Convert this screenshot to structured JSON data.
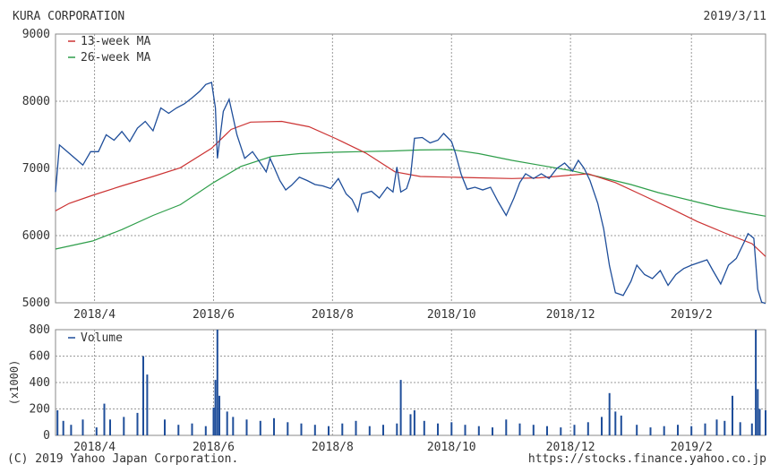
{
  "header": {
    "company": "KURA CORPORATION",
    "date": "2019/3/11"
  },
  "footer": {
    "copyright": "(C) 2019 Yahoo Japan Corporation.",
    "url": "https://stocks.finance.yahoo.co.jp"
  },
  "colors": {
    "price": "#1f4e9a",
    "ma13": "#cc3333",
    "ma26": "#2e9e4a",
    "volume": "#1f4e9a",
    "grid": "#999999",
    "frame": "#888888"
  },
  "chart_data": [
    {
      "type": "line",
      "title": "",
      "xlabel": "",
      "ylabel": "",
      "ylim": [
        5000,
        9000
      ],
      "yticks": [
        5000,
        6000,
        7000,
        8000,
        9000
      ],
      "xticks": [
        "2018/4",
        "2018/6",
        "2018/8",
        "2018/10",
        "2018/12",
        "2019/2"
      ],
      "x_range": [
        "2018-03-12",
        "2019-03-11"
      ],
      "grid": true,
      "legend": "top-left",
      "series": [
        {
          "name": "price",
          "points": [
            [
              "2018-03-12",
              6650
            ],
            [
              "2018-03-14",
              7350
            ],
            [
              "2018-03-18",
              7250
            ],
            [
              "2018-03-22",
              7150
            ],
            [
              "2018-03-26",
              7050
            ],
            [
              "2018-03-30",
              7250
            ],
            [
              "2018-04-03",
              7250
            ],
            [
              "2018-04-07",
              7500
            ],
            [
              "2018-04-11",
              7420
            ],
            [
              "2018-04-15",
              7550
            ],
            [
              "2018-04-19",
              7400
            ],
            [
              "2018-04-23",
              7600
            ],
            [
              "2018-04-27",
              7700
            ],
            [
              "2018-05-01",
              7560
            ],
            [
              "2018-05-05",
              7900
            ],
            [
              "2018-05-09",
              7820
            ],
            [
              "2018-05-13",
              7900
            ],
            [
              "2018-05-17",
              7960
            ],
            [
              "2018-05-21",
              8050
            ],
            [
              "2018-05-25",
              8150
            ],
            [
              "2018-05-28",
              8250
            ],
            [
              "2018-05-31",
              8280
            ],
            [
              "2018-06-02",
              7900
            ],
            [
              "2018-06-03",
              7150
            ],
            [
              "2018-06-06",
              7850
            ],
            [
              "2018-06-09",
              8030
            ],
            [
              "2018-06-13",
              7500
            ],
            [
              "2018-06-17",
              7150
            ],
            [
              "2018-06-21",
              7250
            ],
            [
              "2018-06-25",
              7080
            ],
            [
              "2018-06-28",
              6950
            ],
            [
              "2018-06-30",
              7150
            ],
            [
              "2018-07-02",
              7020
            ],
            [
              "2018-07-05",
              6820
            ],
            [
              "2018-07-08",
              6680
            ],
            [
              "2018-07-11",
              6750
            ],
            [
              "2018-07-15",
              6870
            ],
            [
              "2018-07-19",
              6820
            ],
            [
              "2018-07-23",
              6760
            ],
            [
              "2018-07-27",
              6740
            ],
            [
              "2018-07-31",
              6700
            ],
            [
              "2018-08-04",
              6850
            ],
            [
              "2018-08-08",
              6620
            ],
            [
              "2018-08-11",
              6540
            ],
            [
              "2018-08-14",
              6360
            ],
            [
              "2018-08-16",
              6620
            ],
            [
              "2018-08-21",
              6660
            ],
            [
              "2018-08-25",
              6560
            ],
            [
              "2018-08-29",
              6720
            ],
            [
              "2018-09-01",
              6650
            ],
            [
              "2018-09-03",
              7020
            ],
            [
              "2018-09-05",
              6650
            ],
            [
              "2018-09-08",
              6700
            ],
            [
              "2018-09-10",
              6880
            ],
            [
              "2018-09-12",
              7450
            ],
            [
              "2018-09-16",
              7460
            ],
            [
              "2018-09-20",
              7380
            ],
            [
              "2018-09-24",
              7420
            ],
            [
              "2018-09-27",
              7520
            ],
            [
              "2018-10-01",
              7400
            ],
            [
              "2018-10-03",
              7230
            ],
            [
              "2018-10-06",
              6910
            ],
            [
              "2018-10-09",
              6690
            ],
            [
              "2018-10-13",
              6720
            ],
            [
              "2018-10-17",
              6680
            ],
            [
              "2018-10-21",
              6720
            ],
            [
              "2018-10-25",
              6500
            ],
            [
              "2018-10-29",
              6300
            ],
            [
              "2018-11-02",
              6560
            ],
            [
              "2018-11-05",
              6790
            ],
            [
              "2018-11-08",
              6920
            ],
            [
              "2018-11-12",
              6850
            ],
            [
              "2018-11-16",
              6920
            ],
            [
              "2018-11-20",
              6850
            ],
            [
              "2018-11-24",
              7000
            ],
            [
              "2018-11-28",
              7080
            ],
            [
              "2018-12-02",
              6960
            ],
            [
              "2018-12-05",
              7120
            ],
            [
              "2018-12-08",
              7000
            ],
            [
              "2018-12-11",
              6820
            ],
            [
              "2018-12-15",
              6480
            ],
            [
              "2018-12-18",
              6100
            ],
            [
              "2018-12-21",
              5550
            ],
            [
              "2018-12-24",
              5150
            ],
            [
              "2018-12-28",
              5110
            ],
            [
              "2019-01-01",
              5320
            ],
            [
              "2019-01-04",
              5560
            ],
            [
              "2019-01-08",
              5420
            ],
            [
              "2019-01-12",
              5360
            ],
            [
              "2019-01-16",
              5480
            ],
            [
              "2019-01-20",
              5260
            ],
            [
              "2019-01-24",
              5420
            ],
            [
              "2019-01-28",
              5510
            ],
            [
              "2019-02-01",
              5560
            ],
            [
              "2019-02-05",
              5600
            ],
            [
              "2019-02-09",
              5640
            ],
            [
              "2019-02-12",
              5480
            ],
            [
              "2019-02-16",
              5280
            ],
            [
              "2019-02-20",
              5560
            ],
            [
              "2019-02-24",
              5660
            ],
            [
              "2019-02-28",
              5900
            ],
            [
              "2019-03-02",
              6030
            ],
            [
              "2019-03-05",
              5960
            ],
            [
              "2019-03-07",
              5200
            ],
            [
              "2019-03-09",
              5010
            ],
            [
              "2019-03-11",
              4990
            ]
          ]
        },
        {
          "name": "13-week MA",
          "points": [
            [
              "2018-03-12",
              6370
            ],
            [
              "2018-03-19",
              6480
            ],
            [
              "2018-03-31",
              6600
            ],
            [
              "2018-04-15",
              6740
            ],
            [
              "2018-05-01",
              6880
            ],
            [
              "2018-05-15",
              7010
            ],
            [
              "2018-05-31",
              7300
            ],
            [
              "2018-06-10",
              7580
            ],
            [
              "2018-06-20",
              7690
            ],
            [
              "2018-07-06",
              7700
            ],
            [
              "2018-07-20",
              7620
            ],
            [
              "2018-08-03",
              7440
            ],
            [
              "2018-08-18",
              7230
            ],
            [
              "2018-09-02",
              6950
            ],
            [
              "2018-09-15",
              6880
            ],
            [
              "2018-10-01",
              6870
            ],
            [
              "2018-10-15",
              6860
            ],
            [
              "2018-11-01",
              6850
            ],
            [
              "2018-11-15",
              6860
            ],
            [
              "2018-12-01",
              6900
            ],
            [
              "2018-12-10",
              6920
            ],
            [
              "2018-12-24",
              6790
            ],
            [
              "2019-01-07",
              6600
            ],
            [
              "2019-01-21",
              6410
            ],
            [
              "2019-02-04",
              6210
            ],
            [
              "2019-02-18",
              6040
            ],
            [
              "2019-03-04",
              5880
            ],
            [
              "2019-03-11",
              5690
            ]
          ]
        },
        {
          "name": "26-week MA",
          "points": [
            [
              "2018-03-12",
              5800
            ],
            [
              "2018-03-31",
              5920
            ],
            [
              "2018-04-15",
              6090
            ],
            [
              "2018-05-01",
              6300
            ],
            [
              "2018-05-15",
              6460
            ],
            [
              "2018-06-01",
              6790
            ],
            [
              "2018-06-15",
              7030
            ],
            [
              "2018-07-01",
              7180
            ],
            [
              "2018-07-15",
              7220
            ],
            [
              "2018-08-01",
              7240
            ],
            [
              "2018-08-15",
              7250
            ],
            [
              "2018-09-01",
              7260
            ],
            [
              "2018-09-15",
              7275
            ],
            [
              "2018-10-01",
              7280
            ],
            [
              "2018-10-15",
              7220
            ],
            [
              "2018-11-01",
              7120
            ],
            [
              "2018-11-15",
              7050
            ],
            [
              "2018-12-01",
              6970
            ],
            [
              "2018-12-15",
              6880
            ],
            [
              "2019-01-01",
              6760
            ],
            [
              "2019-01-15",
              6640
            ],
            [
              "2019-02-01",
              6520
            ],
            [
              "2019-02-15",
              6420
            ],
            [
              "2019-03-01",
              6340
            ],
            [
              "2019-03-11",
              6290
            ]
          ]
        }
      ]
    },
    {
      "type": "bar",
      "title": "",
      "xlabel": "",
      "ylabel": "(x1000)",
      "ylim": [
        0,
        800
      ],
      "yticks": [
        0,
        200,
        400,
        600,
        800
      ],
      "xticks": [
        "2018/4",
        "2018/6",
        "2018/8",
        "2018/10",
        "2018/12",
        "2019/2"
      ],
      "x_range": [
        "2018-03-12",
        "2019-03-11"
      ],
      "grid": true,
      "legend": "top-left",
      "series": [
        {
          "name": "Volume",
          "points": [
            [
              "2018-03-13",
              190
            ],
            [
              "2018-03-16",
              110
            ],
            [
              "2018-03-20",
              80
            ],
            [
              "2018-03-26",
              120
            ],
            [
              "2018-04-02",
              60
            ],
            [
              "2018-04-06",
              240
            ],
            [
              "2018-04-09",
              120
            ],
            [
              "2018-04-16",
              140
            ],
            [
              "2018-04-23",
              170
            ],
            [
              "2018-04-26",
              600
            ],
            [
              "2018-04-28",
              460
            ],
            [
              "2018-05-07",
              120
            ],
            [
              "2018-05-14",
              80
            ],
            [
              "2018-05-21",
              90
            ],
            [
              "2018-05-28",
              70
            ],
            [
              "2018-06-01",
              210
            ],
            [
              "2018-06-02",
              420
            ],
            [
              "2018-06-03",
              800
            ],
            [
              "2018-06-04",
              300
            ],
            [
              "2018-06-08",
              180
            ],
            [
              "2018-06-11",
              140
            ],
            [
              "2018-06-18",
              120
            ],
            [
              "2018-06-25",
              110
            ],
            [
              "2018-07-02",
              130
            ],
            [
              "2018-07-09",
              100
            ],
            [
              "2018-07-16",
              90
            ],
            [
              "2018-07-23",
              80
            ],
            [
              "2018-07-30",
              70
            ],
            [
              "2018-08-06",
              90
            ],
            [
              "2018-08-13",
              110
            ],
            [
              "2018-08-20",
              70
            ],
            [
              "2018-08-27",
              80
            ],
            [
              "2018-09-03",
              90
            ],
            [
              "2018-09-05",
              420
            ],
            [
              "2018-09-10",
              160
            ],
            [
              "2018-09-12",
              190
            ],
            [
              "2018-09-17",
              110
            ],
            [
              "2018-09-24",
              90
            ],
            [
              "2018-10-01",
              100
            ],
            [
              "2018-10-08",
              80
            ],
            [
              "2018-10-15",
              70
            ],
            [
              "2018-10-22",
              60
            ],
            [
              "2018-10-29",
              120
            ],
            [
              "2018-11-05",
              90
            ],
            [
              "2018-11-12",
              80
            ],
            [
              "2018-11-19",
              70
            ],
            [
              "2018-11-26",
              60
            ],
            [
              "2018-12-03",
              80
            ],
            [
              "2018-12-10",
              100
            ],
            [
              "2018-12-17",
              140
            ],
            [
              "2018-12-21",
              320
            ],
            [
              "2018-12-24",
              180
            ],
            [
              "2018-12-27",
              150
            ],
            [
              "2019-01-04",
              80
            ],
            [
              "2019-01-11",
              60
            ],
            [
              "2019-01-18",
              70
            ],
            [
              "2019-01-25",
              80
            ],
            [
              "2019-02-01",
              70
            ],
            [
              "2019-02-08",
              90
            ],
            [
              "2019-02-14",
              120
            ],
            [
              "2019-02-18",
              110
            ],
            [
              "2019-02-22",
              300
            ],
            [
              "2019-02-26",
              100
            ],
            [
              "2019-03-04",
              90
            ],
            [
              "2019-03-06",
              800
            ],
            [
              "2019-03-07",
              350
            ],
            [
              "2019-03-08",
              200
            ],
            [
              "2019-03-11",
              190
            ]
          ]
        }
      ]
    }
  ]
}
